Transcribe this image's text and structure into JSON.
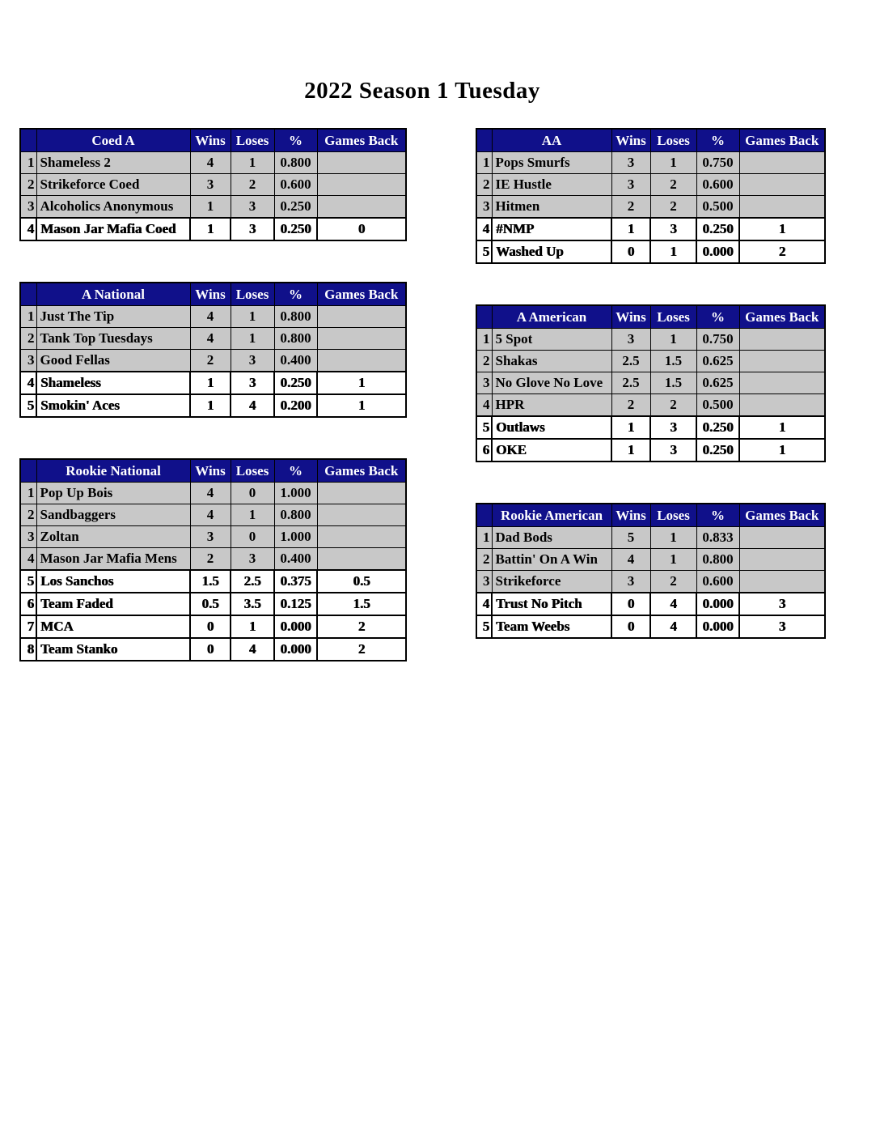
{
  "title": "2022 Season 1 Tuesday",
  "column_headers": {
    "wins": "Wins",
    "loses": "Loses",
    "pct": "%",
    "gb": "Games Back"
  },
  "colors": {
    "header_bg": "#10108a",
    "header_text": "#ffffff",
    "row_shaded": "#c8c8c8",
    "row_below_line": "#ffffff",
    "border": "#000000",
    "page_bg": "#ffffff"
  },
  "tables": [
    {
      "id": "coed-a",
      "name": "Coed A",
      "column": "left",
      "rows": [
        {
          "rank": "1",
          "team": "Shameless 2",
          "wins": "4",
          "loses": "1",
          "pct": "0.800",
          "gb": "",
          "below_line": false
        },
        {
          "rank": "2",
          "team": "Strikeforce Coed",
          "wins": "3",
          "loses": "2",
          "pct": "0.600",
          "gb": "",
          "below_line": false
        },
        {
          "rank": "3",
          "team": "Alcoholics Anonymous",
          "wins": "1",
          "loses": "3",
          "pct": "0.250",
          "gb": "",
          "below_line": false
        },
        {
          "rank": "4",
          "team": "Mason Jar Mafia Coed",
          "wins": "1",
          "loses": "3",
          "pct": "0.250",
          "gb": "0",
          "below_line": true
        }
      ]
    },
    {
      "id": "aa",
      "name": "AA",
      "column": "right",
      "rows": [
        {
          "rank": "1",
          "team": "Pops Smurfs",
          "wins": "3",
          "loses": "1",
          "pct": "0.750",
          "gb": "",
          "below_line": false
        },
        {
          "rank": "2",
          "team": "IE Hustle",
          "wins": "3",
          "loses": "2",
          "pct": "0.600",
          "gb": "",
          "below_line": false
        },
        {
          "rank": "3",
          "team": "Hitmen",
          "wins": "2",
          "loses": "2",
          "pct": "0.500",
          "gb": "",
          "below_line": false
        },
        {
          "rank": "4",
          "team": "#NMP",
          "wins": "1",
          "loses": "3",
          "pct": "0.250",
          "gb": "1",
          "below_line": true
        },
        {
          "rank": "5",
          "team": "Washed Up",
          "wins": "0",
          "loses": "1",
          "pct": "0.000",
          "gb": "2",
          "below_line": true
        }
      ]
    },
    {
      "id": "a-national",
      "name": "A National",
      "column": "left",
      "rows": [
        {
          "rank": "1",
          "team": "Just The Tip",
          "wins": "4",
          "loses": "1",
          "pct": "0.800",
          "gb": "",
          "below_line": false
        },
        {
          "rank": "2",
          "team": "Tank Top Tuesdays",
          "wins": "4",
          "loses": "1",
          "pct": "0.800",
          "gb": "",
          "below_line": false
        },
        {
          "rank": "3",
          "team": "Good Fellas",
          "wins": "2",
          "loses": "3",
          "pct": "0.400",
          "gb": "",
          "below_line": false
        },
        {
          "rank": "4",
          "team": "Shameless",
          "wins": "1",
          "loses": "3",
          "pct": "0.250",
          "gb": "1",
          "below_line": true
        },
        {
          "rank": "5",
          "team": "Smokin' Aces",
          "wins": "1",
          "loses": "4",
          "pct": "0.200",
          "gb": "1",
          "below_line": true
        }
      ]
    },
    {
      "id": "a-american",
      "name": "A American",
      "column": "right",
      "rows": [
        {
          "rank": "1",
          "team": "5 Spot",
          "wins": "3",
          "loses": "1",
          "pct": "0.750",
          "gb": "",
          "below_line": false
        },
        {
          "rank": "2",
          "team": "Shakas",
          "wins": "2.5",
          "loses": "1.5",
          "pct": "0.625",
          "gb": "",
          "below_line": false
        },
        {
          "rank": "3",
          "team": "No Glove No Love",
          "wins": "2.5",
          "loses": "1.5",
          "pct": "0.625",
          "gb": "",
          "below_line": false
        },
        {
          "rank": "4",
          "team": "HPR",
          "wins": "2",
          "loses": "2",
          "pct": "0.500",
          "gb": "",
          "below_line": false
        },
        {
          "rank": "5",
          "team": "Outlaws",
          "wins": "1",
          "loses": "3",
          "pct": "0.250",
          "gb": "1",
          "below_line": true
        },
        {
          "rank": "6",
          "team": "OKE",
          "wins": "1",
          "loses": "3",
          "pct": "0.250",
          "gb": "1",
          "below_line": true
        }
      ]
    },
    {
      "id": "rookie-national",
      "name": "Rookie National",
      "column": "left",
      "rows": [
        {
          "rank": "1",
          "team": "Pop Up Bois",
          "wins": "4",
          "loses": "0",
          "pct": "1.000",
          "gb": "",
          "below_line": false
        },
        {
          "rank": "2",
          "team": "Sandbaggers",
          "wins": "4",
          "loses": "1",
          "pct": "0.800",
          "gb": "",
          "below_line": false
        },
        {
          "rank": "3",
          "team": "Zoltan",
          "wins": "3",
          "loses": "0",
          "pct": "1.000",
          "gb": "",
          "below_line": false
        },
        {
          "rank": "4",
          "team": "Mason Jar Mafia Mens",
          "wins": "2",
          "loses": "3",
          "pct": "0.400",
          "gb": "",
          "below_line": false
        },
        {
          "rank": "5",
          "team": "Los Sanchos",
          "wins": "1.5",
          "loses": "2.5",
          "pct": "0.375",
          "gb": "0.5",
          "below_line": true
        },
        {
          "rank": "6",
          "team": "Team Faded",
          "wins": "0.5",
          "loses": "3.5",
          "pct": "0.125",
          "gb": "1.5",
          "below_line": true
        },
        {
          "rank": "7",
          "team": "MCA",
          "wins": "0",
          "loses": "1",
          "pct": "0.000",
          "gb": "2",
          "below_line": true
        },
        {
          "rank": "8",
          "team": "Team Stanko",
          "wins": "0",
          "loses": "4",
          "pct": "0.000",
          "gb": "2",
          "below_line": true
        }
      ]
    },
    {
      "id": "rookie-american",
      "name": "Rookie American",
      "column": "right",
      "rows": [
        {
          "rank": "1",
          "team": "Dad Bods",
          "wins": "5",
          "loses": "1",
          "pct": "0.833",
          "gb": "",
          "below_line": false
        },
        {
          "rank": "2",
          "team": "Battin' On A Win",
          "wins": "4",
          "loses": "1",
          "pct": "0.800",
          "gb": "",
          "below_line": false
        },
        {
          "rank": "3",
          "team": "Strikeforce",
          "wins": "3",
          "loses": "2",
          "pct": "0.600",
          "gb": "",
          "below_line": false
        },
        {
          "rank": "4",
          "team": "Trust No Pitch",
          "wins": "0",
          "loses": "4",
          "pct": "0.000",
          "gb": "3",
          "below_line": true
        },
        {
          "rank": "5",
          "team": "Team Weebs",
          "wins": "0",
          "loses": "4",
          "pct": "0.000",
          "gb": "3",
          "below_line": true
        }
      ]
    }
  ]
}
